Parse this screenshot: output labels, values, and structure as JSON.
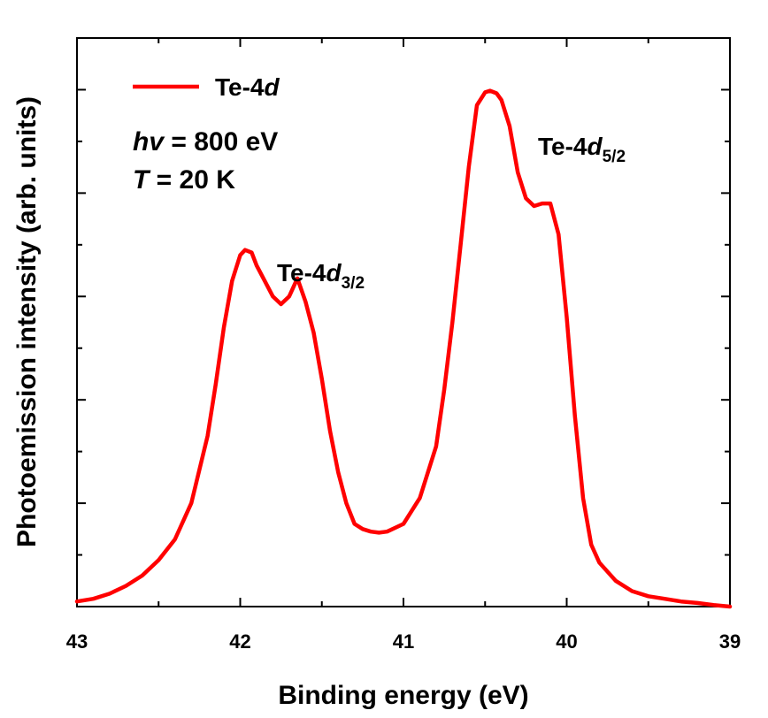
{
  "chart_data": {
    "type": "line",
    "xlabel": "Binding energy (eV)",
    "ylabel": "Photoemission intensity (arb. units)",
    "xlim": [
      43,
      39
    ],
    "x_reversed": true,
    "ylim": [
      0,
      1.1
    ],
    "x_ticks": [
      "43",
      "42",
      "41",
      "40",
      "39"
    ],
    "y_tick_labels_shown": false,
    "grid": false,
    "legend_placement": "top-left",
    "series_color": "#ff0000",
    "legend": {
      "main": "Te-4",
      "italic": "d"
    },
    "annotations": {
      "photon_label": "hv",
      "photon_value": " = 800 eV",
      "temp_label": "T",
      "temp_value": " = 20 K",
      "peak32_main": "Te-4",
      "peak32_italic": "d",
      "peak32_sub": "3/2",
      "peak52_main": "Te-4",
      "peak52_italic": "d",
      "peak52_sub": "5/2"
    },
    "series": [
      {
        "name": "Te-4d",
        "x": [
          43.0,
          42.9,
          42.8,
          42.7,
          42.6,
          42.5,
          42.4,
          42.3,
          42.2,
          42.15,
          42.1,
          42.05,
          42.0,
          41.97,
          41.93,
          41.9,
          41.85,
          41.8,
          41.75,
          41.7,
          41.65,
          41.6,
          41.55,
          41.5,
          41.45,
          41.4,
          41.35,
          41.3,
          41.25,
          41.2,
          41.15,
          41.1,
          41.0,
          40.9,
          40.8,
          40.75,
          40.7,
          40.65,
          40.6,
          40.55,
          40.5,
          40.47,
          40.43,
          40.4,
          40.35,
          40.3,
          40.25,
          40.2,
          40.15,
          40.1,
          40.05,
          40.0,
          39.95,
          39.9,
          39.85,
          39.8,
          39.7,
          39.6,
          39.5,
          39.4,
          39.3,
          39.2,
          39.1,
          39.0
        ],
        "y": [
          0.01,
          0.015,
          0.025,
          0.04,
          0.06,
          0.09,
          0.13,
          0.2,
          0.33,
          0.43,
          0.54,
          0.63,
          0.68,
          0.69,
          0.685,
          0.66,
          0.63,
          0.6,
          0.585,
          0.6,
          0.635,
          0.59,
          0.53,
          0.44,
          0.34,
          0.26,
          0.2,
          0.16,
          0.15,
          0.145,
          0.143,
          0.145,
          0.16,
          0.21,
          0.31,
          0.42,
          0.55,
          0.7,
          0.85,
          0.97,
          0.995,
          0.998,
          0.993,
          0.98,
          0.93,
          0.84,
          0.79,
          0.775,
          0.78,
          0.78,
          0.72,
          0.56,
          0.37,
          0.21,
          0.12,
          0.085,
          0.05,
          0.03,
          0.02,
          0.015,
          0.01,
          0.007,
          0.003,
          0.0
        ]
      }
    ]
  }
}
